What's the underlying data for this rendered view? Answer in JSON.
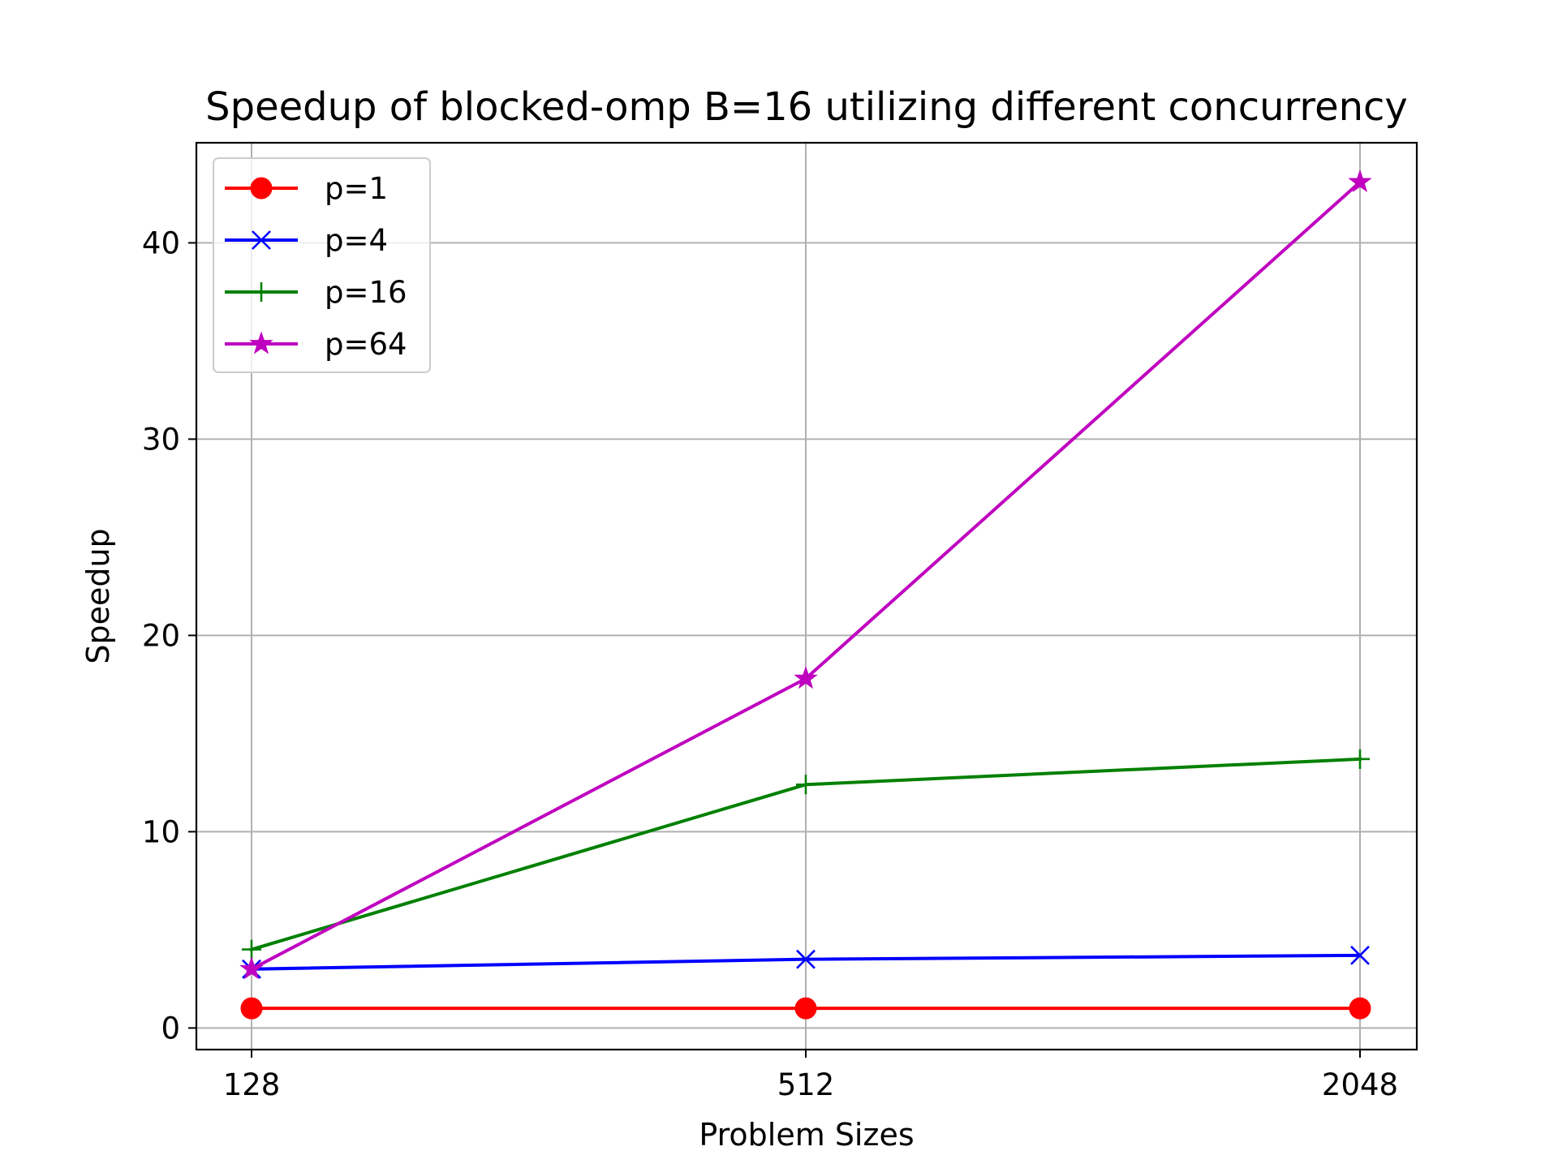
{
  "chart_data": {
    "type": "line",
    "title": "Speedup of blocked-omp B=16 utilizing different concurrency",
    "xlabel": "Problem Sizes",
    "ylabel": "Speedup",
    "categories": [
      "128",
      "512",
      "2048"
    ],
    "yticks": [
      0,
      10,
      20,
      30,
      40
    ],
    "ylim": [
      -1.1,
      45.1
    ],
    "grid": true,
    "legend_position": "top-left",
    "series": [
      {
        "name": "p=1",
        "values": [
          1.0,
          1.0,
          1.0
        ],
        "color": "#ff0000",
        "marker": "circle"
      },
      {
        "name": "p=4",
        "values": [
          3.0,
          3.5,
          3.7
        ],
        "color": "#0000ff",
        "marker": "x"
      },
      {
        "name": "p=16",
        "values": [
          4.0,
          12.4,
          13.7
        ],
        "color": "#008000",
        "marker": "plus"
      },
      {
        "name": "p=64",
        "values": [
          3.0,
          17.8,
          43.1
        ],
        "color": "#bf00bf",
        "marker": "star"
      }
    ]
  }
}
